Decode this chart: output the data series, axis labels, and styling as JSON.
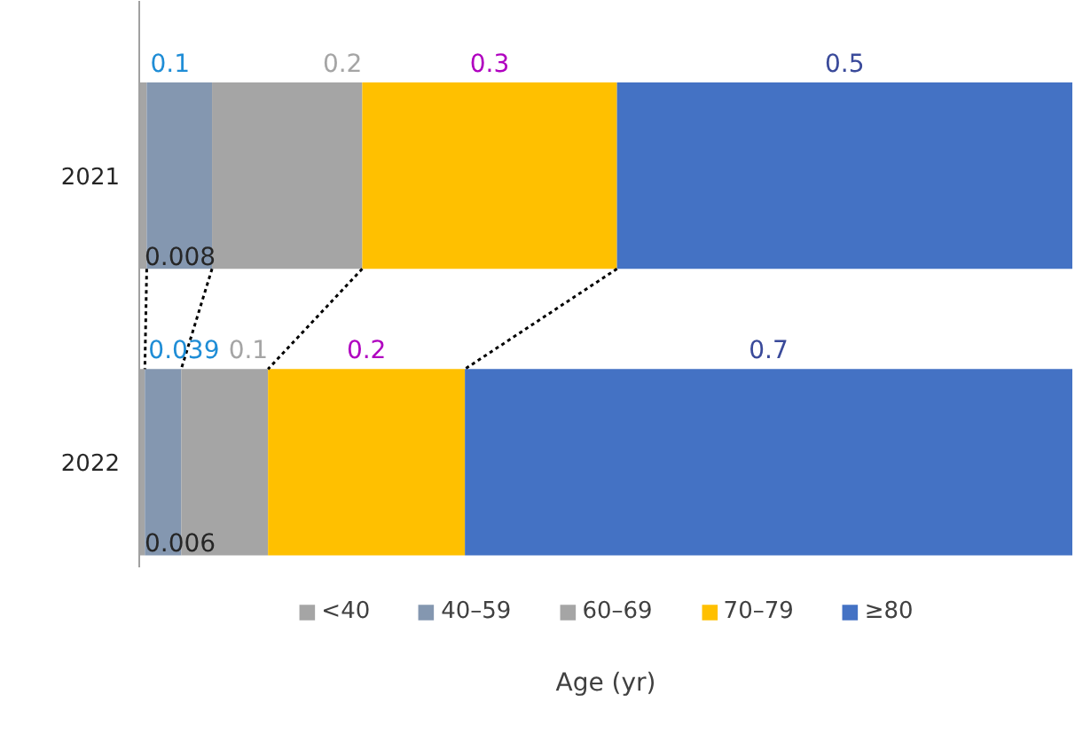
{
  "chart_data": {
    "type": "bar",
    "orientation": "horizontal",
    "stacked": true,
    "xlabel": "Age (yr)",
    "categories": [
      "2021",
      "2022"
    ],
    "xlim": [
      0,
      1
    ],
    "tick_labels": "y",
    "legend": "bottom",
    "grid": false,
    "series": [
      {
        "name": "<40",
        "color": "#a5a5a5",
        "values": [
          0.008,
          0.006
        ],
        "value_labels": [
          "0.008",
          "0.006"
        ]
      },
      {
        "name": "40–59",
        "color": "#8497b0",
        "values": [
          0.07,
          0.039
        ],
        "value_labels": [
          "0.1",
          "0.039"
        ]
      },
      {
        "name": "60–69",
        "color": "#a5a5a5",
        "values": [
          0.161,
          0.093
        ],
        "value_labels": [
          "0.2",
          "0.1"
        ]
      },
      {
        "name": "70–79",
        "color": "#ffc000",
        "values": [
          0.273,
          0.211
        ],
        "value_labels": [
          "0.3",
          "0.2"
        ]
      },
      {
        "name": "≥80",
        "color": "#4472c4",
        "values": [
          0.488,
          0.651
        ],
        "value_labels": [
          "0.5",
          "0.7"
        ]
      }
    ]
  }
}
